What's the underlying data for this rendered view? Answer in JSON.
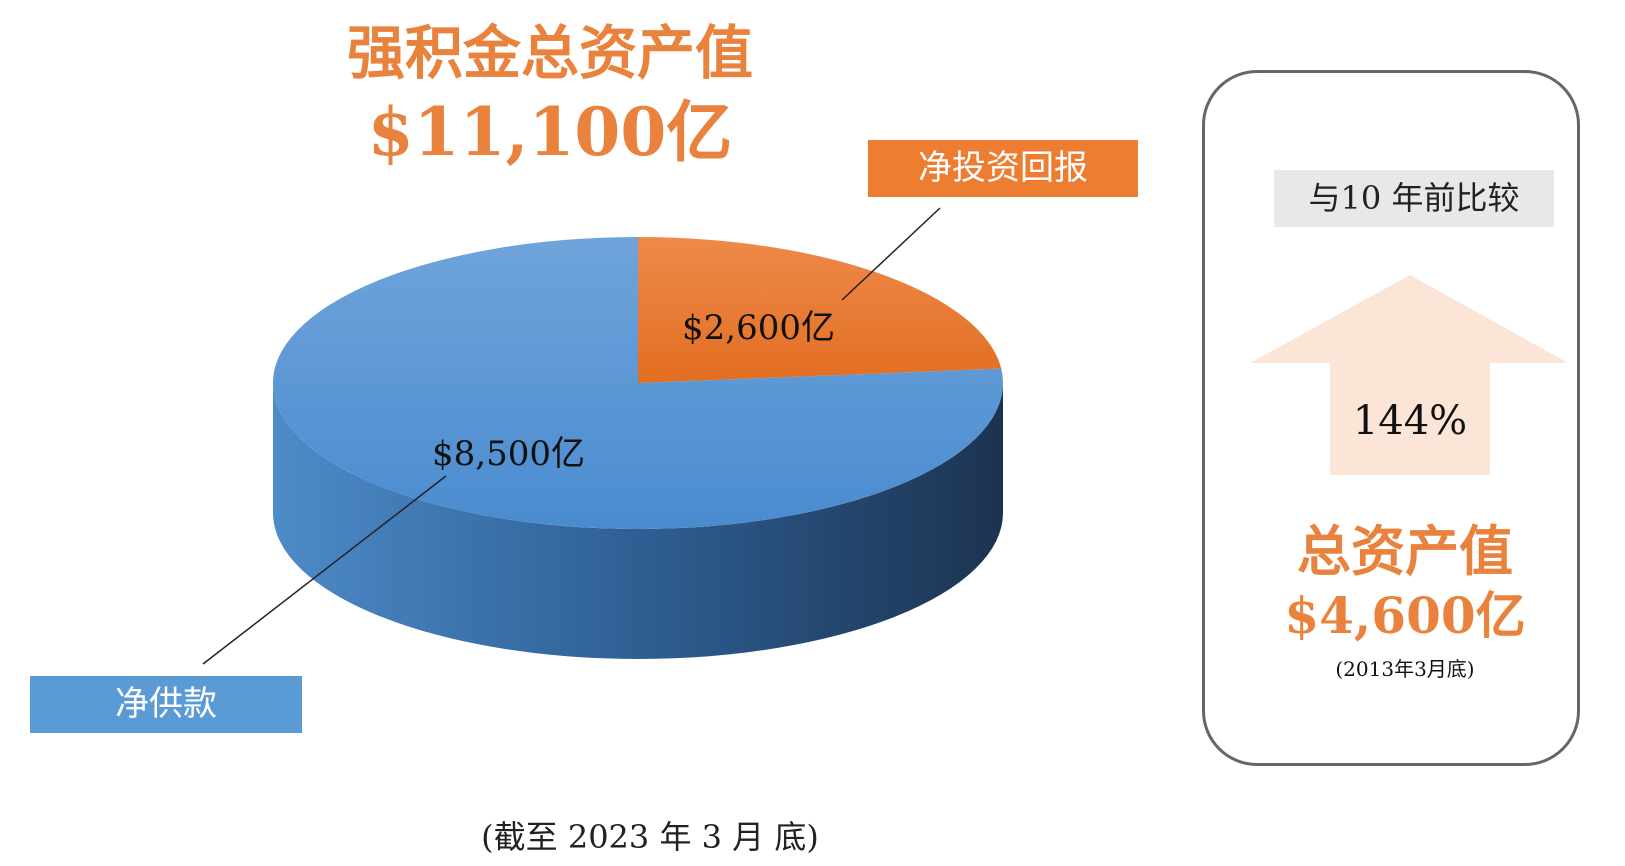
{
  "chart_data": {
    "type": "pie",
    "title": "强积金总资产值",
    "total_label": "$11,100亿",
    "total": 11100,
    "unit": "亿",
    "series": [
      {
        "name": "净投资回报",
        "value": 2600,
        "label": "$2,600亿",
        "color": "#ED7D31"
      },
      {
        "name": "净供款",
        "value": 8500,
        "label": "$8,500亿",
        "color": "#5B9BD5"
      }
    ],
    "footnote": "(截至 2023 年 3 月 底)"
  },
  "comparison": {
    "label": "与10 年前比较",
    "change": "144%",
    "title": "总资产值",
    "value": "$4,600亿",
    "note": "(2013年3月底)",
    "arrow_color": "#FBE5D6"
  }
}
